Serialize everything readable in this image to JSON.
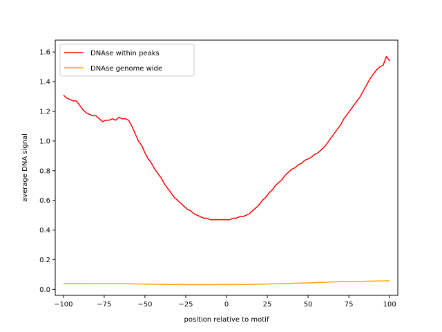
{
  "chart_data": {
    "type": "line",
    "title": "",
    "xlabel": "position relative to motif",
    "ylabel": "average DNA signal",
    "xlim": [
      -105,
      105
    ],
    "ylim": [
      -0.04,
      1.68
    ],
    "xticks": [
      -100,
      -75,
      -50,
      -25,
      0,
      25,
      50,
      75,
      100
    ],
    "yticks": [
      0.0,
      0.2,
      0.4,
      0.6,
      0.8,
      1.0,
      1.2,
      1.4,
      1.6
    ],
    "xtick_labels": [
      "−100",
      "−75",
      "−50",
      "−25",
      "0",
      "25",
      "50",
      "75",
      "100"
    ],
    "ytick_labels": [
      "0.0",
      "0.2",
      "0.4",
      "0.6",
      "0.8",
      "1.0",
      "1.2",
      "1.4",
      "1.6"
    ],
    "grid": false,
    "legend_position": "top-left",
    "series": [
      {
        "name": "DNAse within peaks",
        "color": "#ff0000",
        "x": [
          -100,
          -98,
          -96,
          -94,
          -92,
          -90,
          -88,
          -86,
          -84,
          -82,
          -80,
          -78,
          -76,
          -74,
          -72,
          -70,
          -68,
          -66,
          -64,
          -62,
          -60,
          -58,
          -56,
          -54,
          -52,
          -50,
          -48,
          -46,
          -44,
          -42,
          -40,
          -38,
          -36,
          -34,
          -32,
          -30,
          -28,
          -26,
          -24,
          -22,
          -20,
          -18,
          -16,
          -14,
          -12,
          -10,
          -8,
          -6,
          -4,
          -2,
          0,
          2,
          4,
          6,
          8,
          10,
          12,
          14,
          16,
          18,
          20,
          22,
          24,
          26,
          28,
          30,
          32,
          34,
          36,
          38,
          40,
          42,
          44,
          46,
          48,
          50,
          52,
          54,
          56,
          58,
          60,
          62,
          64,
          66,
          68,
          70,
          72,
          74,
          76,
          78,
          80,
          82,
          84,
          86,
          88,
          90,
          92,
          94,
          96,
          98,
          100
        ],
        "y": [
          1.31,
          1.29,
          1.28,
          1.27,
          1.27,
          1.24,
          1.21,
          1.19,
          1.18,
          1.17,
          1.17,
          1.15,
          1.13,
          1.14,
          1.14,
          1.15,
          1.14,
          1.16,
          1.15,
          1.15,
          1.14,
          1.1,
          1.05,
          1.0,
          0.97,
          0.92,
          0.88,
          0.85,
          0.81,
          0.78,
          0.75,
          0.71,
          0.68,
          0.65,
          0.62,
          0.6,
          0.58,
          0.56,
          0.54,
          0.53,
          0.51,
          0.5,
          0.49,
          0.48,
          0.48,
          0.47,
          0.47,
          0.47,
          0.47,
          0.47,
          0.47,
          0.47,
          0.48,
          0.48,
          0.49,
          0.49,
          0.5,
          0.51,
          0.53,
          0.55,
          0.57,
          0.6,
          0.62,
          0.65,
          0.67,
          0.7,
          0.72,
          0.74,
          0.77,
          0.79,
          0.81,
          0.82,
          0.84,
          0.85,
          0.87,
          0.88,
          0.89,
          0.91,
          0.92,
          0.94,
          0.96,
          0.99,
          1.02,
          1.05,
          1.08,
          1.11,
          1.15,
          1.18,
          1.21,
          1.24,
          1.27,
          1.3,
          1.34,
          1.38,
          1.42,
          1.45,
          1.48,
          1.5,
          1.51,
          1.57,
          1.54
        ]
      },
      {
        "name": "DNAse genome wide",
        "color": "#ffa500",
        "x": [
          -100,
          -90,
          -80,
          -70,
          -60,
          -50,
          -40,
          -30,
          -20,
          -10,
          0,
          10,
          20,
          30,
          40,
          50,
          60,
          70,
          80,
          90,
          100
        ],
        "y": [
          0.04,
          0.039,
          0.038,
          0.038,
          0.038,
          0.036,
          0.034,
          0.033,
          0.032,
          0.032,
          0.033,
          0.033,
          0.035,
          0.038,
          0.041,
          0.044,
          0.048,
          0.052,
          0.054,
          0.056,
          0.058
        ]
      }
    ]
  }
}
